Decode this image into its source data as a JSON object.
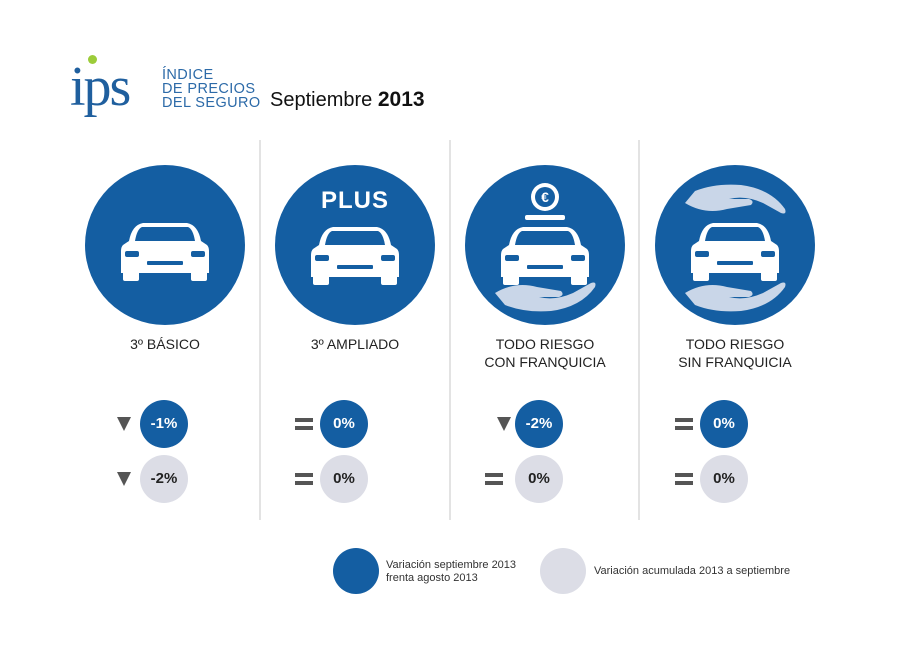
{
  "header": {
    "logo_text": "ips",
    "brand_lines": [
      "Índice",
      "de precios",
      "del seguro"
    ],
    "period_month": "Septiembre",
    "period_year": "2013"
  },
  "colors": {
    "accent": "#145ea2",
    "muted": "#dcdde6",
    "indicator": "#555555"
  },
  "columns": [
    {
      "label_lines": [
        "3º BÁSICO"
      ],
      "icon": "car-icon",
      "badge": "",
      "monthly": {
        "indicator": "down",
        "value": "-1%"
      },
      "accumulated": {
        "indicator": "down",
        "value": "-2%"
      }
    },
    {
      "label_lines": [
        "3º AMPLIADO"
      ],
      "icon": "car-icon",
      "badge": "PLUS",
      "monthly": {
        "indicator": "equal",
        "value": "0%"
      },
      "accumulated": {
        "indicator": "equal",
        "value": "0%"
      }
    },
    {
      "label_lines": [
        "TODO RIESGO",
        "CON FRANQUICIA"
      ],
      "icon": "car-euro-hand-icon",
      "badge": "",
      "monthly": {
        "indicator": "down",
        "value": "-2%"
      },
      "accumulated": {
        "indicator": "equal",
        "value": "0%"
      }
    },
    {
      "label_lines": [
        "TODO RIESGO",
        "SIN FRANQUICIA"
      ],
      "icon": "car-hands-icon",
      "badge": "",
      "monthly": {
        "indicator": "equal",
        "value": "0%"
      },
      "accumulated": {
        "indicator": "equal",
        "value": "0%"
      }
    }
  ],
  "legend": {
    "monthly_lines": [
      "Variación septiembre 2013",
      "frenta agosto 2013"
    ],
    "accumulated_lines": [
      "Variación acumulada 2013 a septiembre"
    ]
  }
}
